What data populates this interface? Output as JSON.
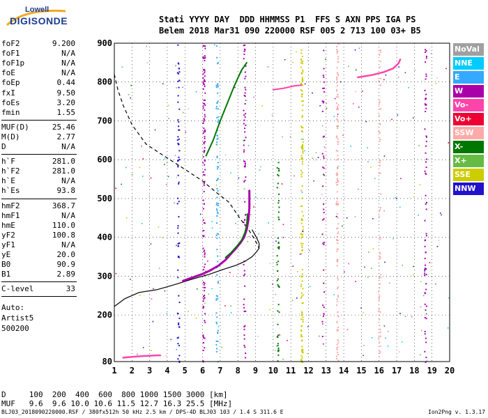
{
  "logo": {
    "line1": "Lowell",
    "line2": "DIGISONDE"
  },
  "header": {
    "labels": "Stati YYYY DAY  DDD HHMMSS P1  FFS S AXN PPS IGA PS",
    "values": "Belem 2018 Mar31 090 220000 RSF 005 2 713 100 03+ B5"
  },
  "params": {
    "group1": [
      {
        "name": "foF2",
        "value": "9.200"
      },
      {
        "name": "foF1",
        "value": "N/A"
      },
      {
        "name": "foF1p",
        "value": "N/A"
      },
      {
        "name": "foE",
        "value": "N/A"
      },
      {
        "name": "foEp",
        "value": "0.44"
      },
      {
        "name": "fxI",
        "value": "9.50"
      },
      {
        "name": "foEs",
        "value": "3.20"
      },
      {
        "name": "fmin",
        "value": "1.55"
      }
    ],
    "group2": [
      {
        "name": "MUF(D)",
        "value": "25.46"
      },
      {
        "name": "M(D)",
        "value": "2.77"
      },
      {
        "name": "D",
        "value": "N/A"
      }
    ],
    "group3": [
      {
        "name": "h`F",
        "value": "281.0"
      },
      {
        "name": "h`F2",
        "value": "281.0"
      },
      {
        "name": "h`E",
        "value": "N/A"
      },
      {
        "name": "h`Es",
        "value": "93.8"
      }
    ],
    "group4": [
      {
        "name": "hmF2",
        "value": "368.7"
      },
      {
        "name": "hmF1",
        "value": "N/A"
      },
      {
        "name": "hmE",
        "value": "110.0"
      },
      {
        "name": "yF2",
        "value": "100.8"
      },
      {
        "name": "yF1",
        "value": "N/A"
      },
      {
        "name": "yE",
        "value": "20.0"
      },
      {
        "name": "B0",
        "value": "90.9"
      },
      {
        "name": "B1",
        "value": "2.89"
      }
    ],
    "group5": [
      {
        "name": "C-level",
        "value": "33"
      }
    ],
    "auto_label": "Auto:",
    "artist": "Artist5",
    "code": "500200"
  },
  "legend": [
    {
      "label": "NoVal",
      "color": "#a0a0a0"
    },
    {
      "label": "NNE",
      "color": "#00ccff"
    },
    {
      "label": "E",
      "color": "#33aaff"
    },
    {
      "label": "W",
      "color": "#aa00aa"
    },
    {
      "label": "Vo-",
      "color": "#ff44aa"
    },
    {
      "label": "Vo+",
      "color": "#ee0033"
    },
    {
      "label": "SSW",
      "color": "#ffaaaa"
    },
    {
      "label": "X-",
      "color": "#007700"
    },
    {
      "label": "X+",
      "color": "#66bb44"
    },
    {
      "label": "SSE",
      "color": "#cccc00"
    },
    {
      "label": "NNW",
      "color": "#2211cc"
    }
  ],
  "bottom": {
    "d_row": "D     100  200  400  600  800 1000 1500 3000 [km]",
    "muf_row": "MUF   9.6  9.6 10.0 10.6 11.5 12.7 16.3 25.5 [MHz]"
  },
  "footer": "BLJ03_2018090220000.RSF / 380fx512h 50 kHz 2.5 km / DPS-4D BLJ03 103 / 1.4 S 311.6 E",
  "version": "Ion2Png v. 1.3.17",
  "chart_data": {
    "type": "scatter",
    "xlim": [
      1,
      20
    ],
    "ylim": [
      80,
      900
    ],
    "xticks": [
      "1",
      "2",
      "3",
      "4",
      "5",
      "6",
      "7",
      "8",
      "9",
      "10",
      "11",
      "12",
      "13",
      "14",
      "15",
      "16",
      "17",
      "18",
      "19",
      "20"
    ],
    "yticks": [
      "80",
      "200",
      "300",
      "400",
      "500",
      "600",
      "700",
      "800",
      "900"
    ],
    "grid": true,
    "profile_solid": [
      [
        1.0,
        222
      ],
      [
        1.6,
        242
      ],
      [
        2.4,
        258
      ],
      [
        3.4,
        265
      ],
      [
        4.4,
        278
      ],
      [
        5.4,
        292
      ],
      [
        6.4,
        305
      ],
      [
        7.2,
        318
      ],
      [
        7.9,
        328
      ],
      [
        8.4,
        338
      ],
      [
        8.8,
        350
      ],
      [
        9.05,
        362
      ],
      [
        9.2,
        372
      ],
      [
        9.2,
        385
      ],
      [
        9.05,
        400
      ],
      [
        8.8,
        420
      ]
    ],
    "profile_dashed": [
      [
        1.0,
        820
      ],
      [
        1.2,
        780
      ],
      [
        1.5,
        740
      ],
      [
        2.0,
        690
      ],
      [
        2.8,
        640
      ],
      [
        3.8,
        610
      ],
      [
        5.0,
        575
      ],
      [
        6.0,
        545
      ],
      [
        6.8,
        515
      ],
      [
        7.5,
        490
      ],
      [
        8.1,
        450
      ],
      [
        8.6,
        420
      ],
      [
        8.95,
        395
      ],
      [
        9.2,
        372
      ]
    ],
    "trace_f2": [
      [
        4.9,
        288
      ],
      [
        5.4,
        296
      ],
      [
        5.9,
        304
      ],
      [
        6.4,
        314
      ],
      [
        6.9,
        327
      ],
      [
        7.3,
        342
      ],
      [
        7.6,
        357
      ],
      [
        7.9,
        372
      ],
      [
        8.15,
        386
      ],
      [
        8.35,
        400
      ],
      [
        8.5,
        420
      ],
      [
        8.6,
        445
      ],
      [
        8.65,
        475
      ],
      [
        8.65,
        500
      ],
      [
        8.65,
        520
      ]
    ],
    "trace_f2_x": [
      [
        7.3,
        348
      ],
      [
        7.6,
        360
      ],
      [
        7.9,
        375
      ],
      [
        8.2,
        392
      ],
      [
        8.4,
        412
      ],
      [
        8.5,
        432
      ],
      [
        8.55,
        460
      ]
    ],
    "trace_multi": [
      [
        6.2,
        610
      ],
      [
        6.6,
        650
      ],
      [
        7.0,
        700
      ],
      [
        7.4,
        745
      ],
      [
        7.8,
        790
      ],
      [
        8.2,
        830
      ],
      [
        8.5,
        850
      ]
    ],
    "trace_es": [
      [
        1.5,
        90
      ],
      [
        2.0,
        92
      ],
      [
        2.5,
        94
      ],
      [
        3.0,
        95
      ],
      [
        3.4,
        96
      ],
      [
        3.6,
        96
      ]
    ],
    "trace_upper": [
      [
        10.0,
        780
      ],
      [
        10.6,
        784
      ],
      [
        11.2,
        790
      ],
      [
        11.6,
        792
      ]
    ],
    "trace_upper2": [
      [
        14.8,
        812
      ],
      [
        15.6,
        818
      ],
      [
        16.3,
        826
      ],
      [
        16.8,
        835
      ],
      [
        17.1,
        848
      ],
      [
        17.2,
        858
      ]
    ]
  }
}
